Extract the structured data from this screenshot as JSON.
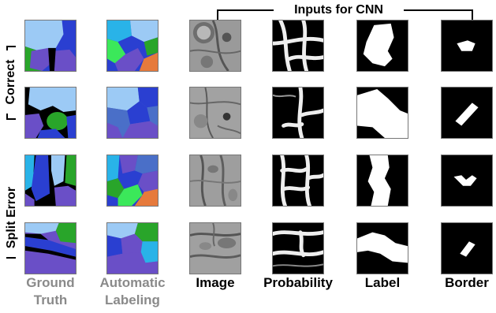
{
  "header": {
    "inputs_label": "Inputs for CNN"
  },
  "side_labels": {
    "correct": "Correct",
    "split_error": "Split Error"
  },
  "columns": {
    "ground_truth": {
      "line1": "Ground",
      "line2": "Truth"
    },
    "automatic_labeling": {
      "line1": "Automatic",
      "line2": "Labeling"
    },
    "image": "Image",
    "probability": "Probability",
    "label": "Label",
    "border": "Border"
  },
  "colors": {
    "light_blue": "#9ccaf5",
    "blue": "#2a3fd1",
    "purple": "#6a4fc7",
    "green": "#29a52a",
    "bright_green": "#3be85a",
    "cyan": "#29b3e8",
    "orange": "#e67a3c",
    "steel_blue": "#4a6fc8",
    "gray_label": "#8a8a8a"
  }
}
